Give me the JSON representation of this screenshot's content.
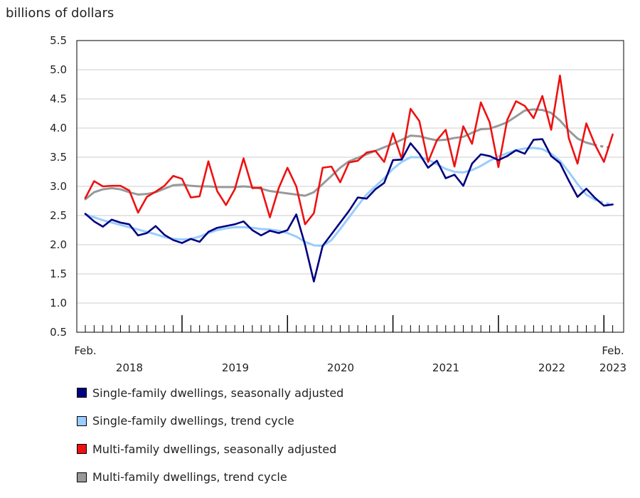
{
  "chart_data": {
    "type": "line",
    "ylabel": "billions of dollars",
    "ylim": [
      0.5,
      5.5
    ],
    "yticks": [
      "0.5",
      "1.0",
      "1.5",
      "2.0",
      "2.5",
      "3.0",
      "3.5",
      "4.0",
      "4.5",
      "5.0",
      "5.5"
    ],
    "ytick_values": [
      0.5,
      1.0,
      1.5,
      2.0,
      2.5,
      3.0,
      3.5,
      4.0,
      4.5,
      5.0,
      5.5
    ],
    "x_start": "Feb. 2018",
    "x_end": "Feb. 2023",
    "x_labels": {
      "start_month": "Feb.",
      "end_month": "Feb.",
      "years": [
        "2018",
        "2019",
        "2020",
        "2021",
        "2022",
        "2023"
      ]
    },
    "series": [
      {
        "name": "Single-family dwellings, seasonally adjusted",
        "color": "#000080",
        "dashed_tail_from": null,
        "values": [
          2.53,
          2.4,
          2.31,
          2.43,
          2.38,
          2.35,
          2.16,
          2.2,
          2.32,
          2.17,
          2.08,
          2.03,
          2.1,
          2.05,
          2.22,
          2.29,
          2.32,
          2.35,
          2.4,
          2.25,
          2.16,
          2.24,
          2.2,
          2.25,
          2.52,
          2.0,
          1.37,
          1.98,
          2.18,
          2.38,
          2.58,
          2.81,
          2.79,
          2.95,
          3.06,
          3.45,
          3.46,
          3.74,
          3.56,
          3.32,
          3.44,
          3.14,
          3.2,
          3.01,
          3.39,
          3.55,
          3.52,
          3.45,
          3.52,
          3.62,
          3.56,
          3.8,
          3.81,
          3.52,
          3.4,
          3.1,
          2.82,
          2.96,
          2.8,
          2.67,
          2.69
        ]
      },
      {
        "name": "Single-family dwellings, trend cycle",
        "color": "#99ccff",
        "dashed_tail_from": 58,
        "values": [
          2.52,
          2.47,
          2.42,
          2.38,
          2.34,
          2.3,
          2.26,
          2.22,
          2.18,
          2.13,
          2.1,
          2.09,
          2.1,
          2.14,
          2.2,
          2.25,
          2.28,
          2.3,
          2.3,
          2.29,
          2.27,
          2.26,
          2.24,
          2.2,
          2.14,
          2.05,
          1.99,
          1.98,
          2.08,
          2.27,
          2.47,
          2.67,
          2.86,
          3.0,
          3.14,
          3.3,
          3.42,
          3.5,
          3.5,
          3.46,
          3.38,
          3.3,
          3.25,
          3.24,
          3.28,
          3.35,
          3.44,
          3.51,
          3.57,
          3.62,
          3.65,
          3.66,
          3.64,
          3.56,
          3.44,
          3.25,
          3.04,
          2.86,
          2.77,
          2.72,
          2.69
        ]
      },
      {
        "name": "Multi-family dwellings, seasonally adjusted",
        "color": "#ee1111",
        "dashed_tail_from": null,
        "values": [
          2.8,
          3.09,
          3.0,
          3.01,
          3.01,
          2.93,
          2.55,
          2.82,
          2.91,
          3.01,
          3.18,
          3.13,
          2.81,
          2.83,
          3.43,
          2.92,
          2.68,
          2.95,
          3.48,
          2.97,
          2.98,
          2.47,
          2.97,
          3.32,
          3.0,
          2.35,
          2.54,
          3.32,
          3.34,
          3.07,
          3.41,
          3.44,
          3.58,
          3.61,
          3.42,
          3.91,
          3.47,
          4.33,
          4.12,
          3.42,
          3.79,
          3.97,
          3.34,
          4.03,
          3.73,
          4.44,
          4.1,
          3.33,
          4.14,
          4.46,
          4.38,
          4.17,
          4.55,
          3.97,
          4.9,
          3.83,
          3.39,
          4.08,
          3.71,
          3.42,
          3.89
        ]
      },
      {
        "name": "Multi-family dwellings, trend cycle",
        "color": "#999999",
        "dashed_tail_from": 58,
        "values": [
          2.78,
          2.9,
          2.95,
          2.97,
          2.95,
          2.9,
          2.86,
          2.87,
          2.9,
          2.96,
          3.02,
          3.03,
          3.01,
          3.0,
          3.0,
          2.99,
          2.99,
          2.99,
          3.0,
          2.99,
          2.96,
          2.92,
          2.9,
          2.88,
          2.86,
          2.84,
          2.9,
          3.04,
          3.18,
          3.32,
          3.43,
          3.49,
          3.55,
          3.61,
          3.67,
          3.73,
          3.8,
          3.87,
          3.86,
          3.82,
          3.79,
          3.8,
          3.83,
          3.85,
          3.92,
          3.98,
          3.99,
          4.04,
          4.1,
          4.2,
          4.3,
          4.32,
          4.31,
          4.26,
          4.13,
          3.96,
          3.82,
          3.75,
          3.71,
          3.68,
          3.66
        ]
      }
    ]
  },
  "legend": {
    "items": [
      {
        "label": "Single-family dwellings, seasonally adjusted",
        "color": "#000080"
      },
      {
        "label": "Single-family dwellings, trend cycle",
        "color": "#99ccff"
      },
      {
        "label": "Multi-family dwellings, seasonally adjusted",
        "color": "#ee1111"
      },
      {
        "label": "Multi-family dwellings, trend cycle",
        "color": "#999999"
      }
    ]
  }
}
